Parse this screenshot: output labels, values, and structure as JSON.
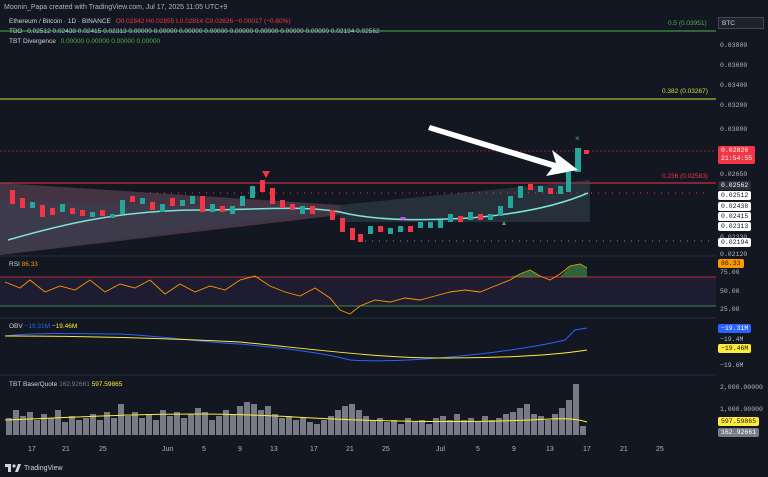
{
  "header": {
    "text": "Moonin_Papa created with TradingView.com, Jul 17, 2025 11:05 UTC+9"
  },
  "legend": {
    "main": {
      "name": "Ethereum / Bitcoin · 1D · BINANCE",
      "values": "O0.02842  H0.02855  L0.02814  C0.02826  −0.00017 (−0.60%)"
    },
    "tbo": {
      "name": "TBO",
      "values": "0.02512  0.02438  0.02415  0.02313  0.00000  0.00000  0.00000  0.00000  0.00000  0.00000  0.00000  0.00000  0.02194  0.02562"
    },
    "tbt": {
      "name": "TBT Divergence",
      "values": "0.00000  0.00000  0.00000  0.00000"
    }
  },
  "symbol_box": "BTC",
  "fib": [
    {
      "label": "0.5 (0.03951)",
      "color": "#4caf50"
    },
    {
      "label": "0.382 (0.03267)",
      "color": "#cddc39"
    },
    {
      "label": "0.236 (0.02583)",
      "color": "#f23645"
    }
  ],
  "price_axis": {
    "ticks": [
      "0.03800",
      "0.03600",
      "0.03400",
      "0.03200",
      "0.03000",
      "0.02650",
      "0.02330",
      "0.02120"
    ],
    "badges": [
      {
        "text": "0.02826",
        "sub": "21:54:55",
        "color": "#f23645",
        "fg": "#ffffff"
      },
      {
        "text": "0.02562",
        "color": "#2a2e39",
        "fg": "#ffffff"
      },
      {
        "text": "0.02512",
        "color": "#ffffff",
        "fg": "#131722"
      },
      {
        "text": "0.02438",
        "color": "#ffffff",
        "fg": "#131722"
      },
      {
        "text": "0.02415",
        "color": "#ffffff",
        "fg": "#131722"
      },
      {
        "text": "0.02313",
        "color": "#ffffff",
        "fg": "#131722"
      },
      {
        "text": "0.02194",
        "color": "#ffffff",
        "fg": "#131722"
      }
    ]
  },
  "rsi": {
    "label": "RSI",
    "value": "86.33",
    "ticks": [
      "75.00",
      "50.00",
      "25.00"
    ],
    "badge": "86.33",
    "badge_color": "#ff9800"
  },
  "obv": {
    "label": "OBV",
    "value1": "−19.31M",
    "value2": "−19.46M",
    "ticks": [
      "−19.4M",
      "−19.6M"
    ],
    "badge1": "−19.31M",
    "badge2": "−19.46M"
  },
  "base_quote": {
    "label": "TBT Base/Quote",
    "value1": "162.92661",
    "value2": "597.59865",
    "ticks": [
      "2,000.00000",
      "1,000.00000"
    ],
    "badge1": "597.59865",
    "badge2": "162.92661"
  },
  "xaxis": [
    "17",
    "21",
    "25",
    "Jun",
    "5",
    "9",
    "13",
    "17",
    "21",
    "25",
    "Jul",
    "5",
    "9",
    "13",
    "17",
    "21",
    "25"
  ],
  "footer": {
    "brand": "TradingView"
  }
}
